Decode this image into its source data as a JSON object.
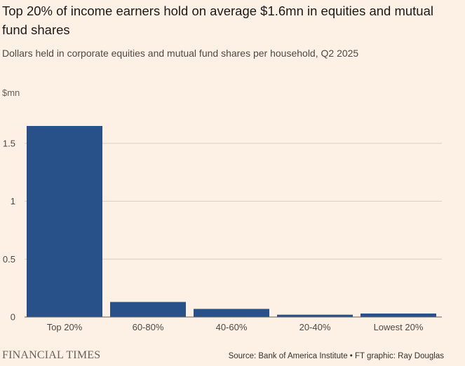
{
  "header": {
    "title": "Top 20% of income earners hold on average $1.6mn in equities and mutual fund shares",
    "subtitle": "Dollars held in corporate equities and mutual fund shares per household, Q2 2025"
  },
  "footer": {
    "brand": "FINANCIAL TIMES",
    "source": "Source: Bank of America Institute • FT graphic: Ray Douglas"
  },
  "colors": {
    "background": "#fdf1e5",
    "bar": "#28518a",
    "gridline": "#d9ccc1",
    "baseline": "#66605c"
  },
  "chart_data": {
    "type": "bar",
    "title": "Top 20% of income earners hold on average $1.6mn in equities and mutual fund shares",
    "subtitle": "Dollars held in corporate equities and mutual fund shares per household, Q2 2025",
    "ylabel": "$mn",
    "xlabel": "",
    "categories": [
      "Top 20%",
      "60-80%",
      "40-60%",
      "20-40%",
      "Lowest 20%"
    ],
    "values": [
      1.65,
      0.13,
      0.07,
      0.02,
      0.03
    ],
    "ylim": [
      0,
      1.65
    ],
    "yticks": [
      0,
      0.5,
      1,
      1.5
    ],
    "ytick_labels": [
      "0",
      "0.5",
      "1",
      "1.5"
    ],
    "grid": true,
    "legend": "none"
  }
}
